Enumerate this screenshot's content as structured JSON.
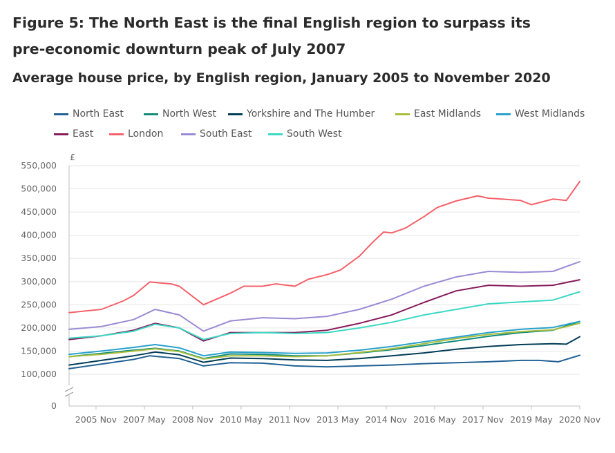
{
  "figure": {
    "title_line1": "Figure 5: The North East is the final English region to surpass its",
    "title_line2": "pre-economic downturn peak of July 2007",
    "subtitle": "Average house price, by English region, January 2005 to November 2020"
  },
  "chart_data": {
    "type": "line",
    "title": "Average house price, by English region, January 2005 to November 2020",
    "ylabel": "£",
    "xlabel": "",
    "ylim": [
      100000,
      550000
    ],
    "y_axis_break": true,
    "y_ticks": [
      100000,
      150000,
      200000,
      250000,
      300000,
      350000,
      400000,
      450000,
      500000,
      550000
    ],
    "y_tick_labels": [
      "100,000",
      "150,000",
      "200,000",
      "250,000",
      "300,000",
      "350,000",
      "400,000",
      "450,000",
      "500,000",
      "550,000"
    ],
    "y_zero_label": "0",
    "x_tick_labels": [
      "2005 Nov",
      "2007 May",
      "2008 Nov",
      "2010 May",
      "2011 Nov",
      "2013 May",
      "2014 Nov",
      "2016 May",
      "2017 Nov",
      "2019 May",
      "2020 Nov"
    ],
    "x_ticks": [
      "2005-11",
      "2007-05",
      "2008-11",
      "2010-05",
      "2011-11",
      "2013-05",
      "2014-11",
      "2016-05",
      "2017-11",
      "2019-05",
      "2020-11"
    ],
    "x_range": [
      "2005-01",
      "2020-11"
    ],
    "grid": true,
    "legend_position": "top",
    "series": [
      {
        "name": "North East",
        "color": "#206095",
        "x": [
          "2005-01",
          "2006-01",
          "2007-01",
          "2007-07",
          "2008-06",
          "2009-03",
          "2010-01",
          "2011-01",
          "2012-01",
          "2013-01",
          "2014-01",
          "2015-01",
          "2016-01",
          "2017-01",
          "2018-01",
          "2019-01",
          "2019-08",
          "2020-03",
          "2020-11"
        ],
        "values": [
          112000,
          122000,
          132000,
          140000,
          134000,
          118000,
          125000,
          124000,
          118000,
          116000,
          118000,
          120000,
          123000,
          125000,
          127000,
          130000,
          130000,
          127000,
          141000
        ]
      },
      {
        "name": "North West",
        "color": "#118c7b",
        "x": [
          "2005-01",
          "2006-01",
          "2007-01",
          "2007-09",
          "2008-06",
          "2009-03",
          "2010-01",
          "2011-01",
          "2012-01",
          "2013-01",
          "2014-01",
          "2015-01",
          "2016-01",
          "2017-01",
          "2018-01",
          "2019-01",
          "2020-01",
          "2020-11"
        ],
        "values": [
          138000,
          145000,
          152000,
          156000,
          150000,
          134000,
          144000,
          143000,
          140000,
          140000,
          146000,
          153000,
          162000,
          172000,
          182000,
          190000,
          195000,
          214000
        ]
      },
      {
        "name": "Yorkshire and The Humber",
        "color": "#003c57",
        "x": [
          "2005-01",
          "2006-01",
          "2007-01",
          "2007-09",
          "2008-06",
          "2009-03",
          "2010-01",
          "2011-01",
          "2012-01",
          "2013-01",
          "2014-01",
          "2015-01",
          "2016-01",
          "2017-01",
          "2018-01",
          "2019-01",
          "2020-01",
          "2020-06",
          "2020-11"
        ],
        "values": [
          120000,
          130000,
          140000,
          148000,
          142000,
          126000,
          135000,
          134000,
          131000,
          130000,
          134000,
          140000,
          146000,
          154000,
          160000,
          164000,
          166000,
          165000,
          181000
        ]
      },
      {
        "name": "East Midlands",
        "color": "#a8bd3a",
        "x": [
          "2005-01",
          "2006-01",
          "2007-01",
          "2007-09",
          "2008-06",
          "2009-03",
          "2010-01",
          "2011-01",
          "2012-01",
          "2013-01",
          "2014-01",
          "2015-01",
          "2016-01",
          "2017-01",
          "2018-01",
          "2019-01",
          "2020-01",
          "2020-11"
        ],
        "values": [
          138000,
          143000,
          150000,
          155000,
          149000,
          133000,
          140000,
          140000,
          138000,
          140000,
          147000,
          155000,
          166000,
          177000,
          186000,
          192000,
          196000,
          210000
        ]
      },
      {
        "name": "West Midlands",
        "color": "#27a0cc",
        "x": [
          "2005-01",
          "2006-01",
          "2007-01",
          "2007-09",
          "2008-06",
          "2009-03",
          "2010-01",
          "2011-01",
          "2012-01",
          "2013-01",
          "2014-01",
          "2015-01",
          "2016-01",
          "2017-01",
          "2018-01",
          "2019-01",
          "2020-01",
          "2020-11"
        ],
        "values": [
          143000,
          150000,
          158000,
          164000,
          157000,
          140000,
          148000,
          147000,
          145000,
          146000,
          152000,
          160000,
          170000,
          180000,
          190000,
          197000,
          201000,
          214000
        ]
      },
      {
        "name": "East",
        "color": "#871a5b",
        "x": [
          "2005-01",
          "2006-01",
          "2007-01",
          "2007-09",
          "2008-06",
          "2009-03",
          "2010-01",
          "2011-01",
          "2012-01",
          "2013-01",
          "2014-01",
          "2015-01",
          "2016-01",
          "2017-01",
          "2018-01",
          "2019-01",
          "2020-01",
          "2020-11"
        ],
        "values": [
          175000,
          183000,
          195000,
          210000,
          200000,
          172000,
          190000,
          190000,
          190000,
          195000,
          210000,
          228000,
          255000,
          280000,
          292000,
          290000,
          292000,
          304000
        ]
      },
      {
        "name": "London",
        "color": "#f66068",
        "x": [
          "2005-01",
          "2006-01",
          "2006-09",
          "2007-01",
          "2007-07",
          "2008-03",
          "2008-06",
          "2009-03",
          "2010-01",
          "2010-06",
          "2011-01",
          "2011-06",
          "2012-01",
          "2012-06",
          "2013-01",
          "2013-06",
          "2014-01",
          "2014-06",
          "2014-10",
          "2015-01",
          "2015-06",
          "2016-01",
          "2016-06",
          "2017-01",
          "2017-09",
          "2018-01",
          "2018-06",
          "2019-01",
          "2019-05",
          "2020-01",
          "2020-06",
          "2020-11"
        ],
        "values": [
          233000,
          240000,
          258000,
          270000,
          299000,
          295000,
          290000,
          250000,
          275000,
          290000,
          290000,
          295000,
          290000,
          305000,
          315000,
          325000,
          355000,
          385000,
          407000,
          405000,
          415000,
          440000,
          460000,
          474000,
          485000,
          480000,
          478000,
          475000,
          466000,
          478000,
          475000,
          516000
        ]
      },
      {
        "name": "South East",
        "color": "#9a8ad4",
        "x": [
          "2005-01",
          "2006-01",
          "2007-01",
          "2007-09",
          "2008-06",
          "2009-03",
          "2010-01",
          "2011-01",
          "2012-01",
          "2013-01",
          "2014-01",
          "2015-01",
          "2016-01",
          "2017-01",
          "2018-01",
          "2019-01",
          "2020-01",
          "2020-11"
        ],
        "values": [
          197000,
          203000,
          218000,
          240000,
          228000,
          193000,
          215000,
          222000,
          220000,
          225000,
          240000,
          262000,
          290000,
          310000,
          322000,
          320000,
          322000,
          343000
        ]
      },
      {
        "name": "South West",
        "color": "#3bd8c4",
        "x": [
          "2005-01",
          "2006-01",
          "2007-01",
          "2007-09",
          "2008-06",
          "2009-03",
          "2010-01",
          "2011-01",
          "2012-01",
          "2013-01",
          "2014-01",
          "2015-01",
          "2016-01",
          "2017-01",
          "2018-01",
          "2019-01",
          "2020-01",
          "2020-11"
        ],
        "values": [
          178000,
          183000,
          193000,
          208000,
          200000,
          175000,
          188000,
          190000,
          188000,
          190000,
          200000,
          212000,
          228000,
          240000,
          252000,
          256000,
          260000,
          278000
        ]
      }
    ]
  }
}
